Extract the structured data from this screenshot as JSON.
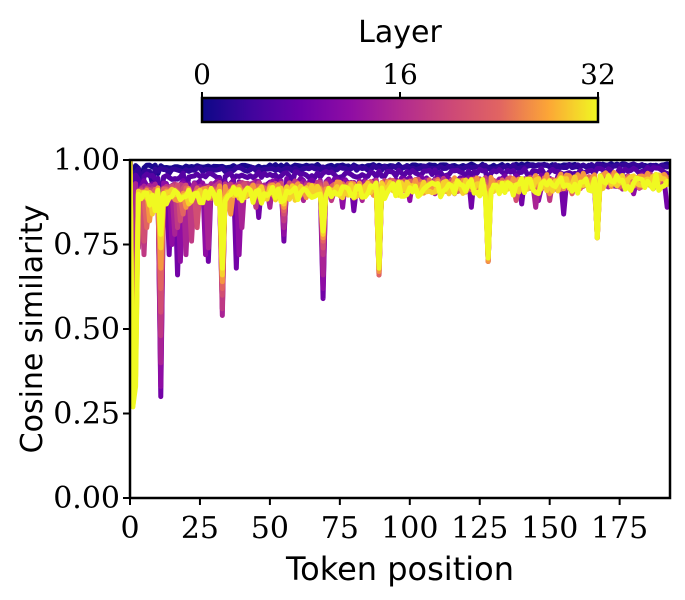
{
  "chart_data": {
    "type": "line",
    "title": "",
    "xlabel": "Token position",
    "ylabel": "Cosine similarity",
    "xlim": [
      0,
      193
    ],
    "ylim": [
      0.0,
      1.0
    ],
    "xticks": [
      0,
      25,
      50,
      75,
      100,
      125,
      150,
      175
    ],
    "yticks": [
      0.0,
      0.25,
      0.5,
      0.75,
      1.0
    ],
    "xtick_labels": [
      "0",
      "25",
      "50",
      "75",
      "100",
      "125",
      "150",
      "175"
    ],
    "ytick_labels": [
      "0.00",
      "0.25",
      "0.50",
      "0.75",
      "1.00"
    ],
    "grid": false,
    "colormap": "plasma",
    "colorbar": {
      "label": "Layer",
      "min": 0,
      "max": 32,
      "ticks": [
        0,
        16,
        32
      ],
      "tick_labels": [
        "0",
        "16",
        "32"
      ],
      "placement": "top"
    },
    "num_tokens": 193,
    "series": [
      {
        "layer": 1,
        "values_note": "",
        "base": 0.985,
        "noise": 0.01,
        "dips": [
          [
            1,
            0.92
          ],
          [
            4,
            0.95
          ],
          [
            10,
            0.96
          ],
          [
            25,
            0.98
          ]
        ],
        "end": 0.99
      },
      {
        "layer": 3,
        "base": 0.975,
        "noise": 0.012,
        "dips": [
          [
            1,
            0.88
          ],
          [
            4,
            0.92
          ],
          [
            8,
            0.93
          ],
          [
            14,
            0.96
          ],
          [
            30,
            0.97
          ]
        ],
        "end": 0.99
      },
      {
        "layer": 6,
        "base": 0.96,
        "noise": 0.02,
        "dips": [
          [
            1,
            0.8
          ],
          [
            4,
            0.87
          ],
          [
            11,
            0.84
          ],
          [
            20,
            0.9
          ],
          [
            33,
            0.88
          ],
          [
            58,
            0.93
          ],
          [
            128,
            0.93
          ]
        ],
        "end": 0.98
      },
      {
        "layer": 9,
        "base": 0.94,
        "noise": 0.03,
        "dips": [
          [
            1,
            0.68
          ],
          [
            3,
            0.82
          ],
          [
            11,
            0.3
          ],
          [
            14,
            0.72
          ],
          [
            17,
            0.66
          ],
          [
            22,
            0.78
          ],
          [
            28,
            0.7
          ],
          [
            33,
            0.6
          ],
          [
            38,
            0.68
          ],
          [
            46,
            0.83
          ],
          [
            55,
            0.76
          ],
          [
            69,
            0.59
          ],
          [
            80,
            0.85
          ],
          [
            89,
            0.72
          ],
          [
            122,
            0.86
          ],
          [
            128,
            0.79
          ],
          [
            140,
            0.87
          ],
          [
            155,
            0.84
          ],
          [
            167,
            0.8
          ],
          [
            192,
            0.86
          ]
        ],
        "end": 0.96
      },
      {
        "layer": 12,
        "base": 0.935,
        "noise": 0.03,
        "dips": [
          [
            1,
            0.6
          ],
          [
            3,
            0.78
          ],
          [
            11,
            0.33
          ],
          [
            15,
            0.75
          ],
          [
            18,
            0.7
          ],
          [
            21,
            0.78
          ],
          [
            27,
            0.72
          ],
          [
            33,
            0.56
          ],
          [
            39,
            0.72
          ],
          [
            55,
            0.78
          ],
          [
            69,
            0.62
          ],
          [
            76,
            0.86
          ],
          [
            89,
            0.68
          ],
          [
            100,
            0.88
          ],
          [
            128,
            0.72
          ],
          [
            146,
            0.88
          ],
          [
            167,
            0.78
          ],
          [
            180,
            0.9
          ]
        ],
        "end": 0.95
      },
      {
        "layer": 15,
        "base": 0.93,
        "noise": 0.035,
        "dips": [
          [
            1,
            0.55
          ],
          [
            3,
            0.74
          ],
          [
            11,
            0.4
          ],
          [
            16,
            0.78
          ],
          [
            20,
            0.72
          ],
          [
            28,
            0.74
          ],
          [
            33,
            0.54
          ],
          [
            40,
            0.8
          ],
          [
            50,
            0.86
          ],
          [
            55,
            0.8
          ],
          [
            62,
            0.88
          ],
          [
            69,
            0.66
          ],
          [
            83,
            0.88
          ],
          [
            89,
            0.66
          ],
          [
            109,
            0.9
          ],
          [
            128,
            0.7
          ],
          [
            145,
            0.86
          ],
          [
            167,
            0.77
          ],
          [
            190,
            0.92
          ]
        ],
        "end": 0.95
      },
      {
        "layer": 18,
        "base": 0.93,
        "noise": 0.035,
        "dips": [
          [
            1,
            0.45
          ],
          [
            2,
            0.6
          ],
          [
            5,
            0.72
          ],
          [
            11,
            0.48
          ],
          [
            17,
            0.8
          ],
          [
            22,
            0.76
          ],
          [
            33,
            0.56
          ],
          [
            45,
            0.86
          ],
          [
            55,
            0.82
          ],
          [
            69,
            0.72
          ],
          [
            72,
            0.88
          ],
          [
            89,
            0.67
          ],
          [
            116,
            0.9
          ],
          [
            128,
            0.7
          ],
          [
            150,
            0.88
          ],
          [
            167,
            0.78
          ]
        ],
        "end": 0.96
      },
      {
        "layer": 21,
        "base": 0.925,
        "noise": 0.04,
        "dips": [
          [
            1,
            0.38
          ],
          [
            2,
            0.5
          ],
          [
            5,
            0.76
          ],
          [
            11,
            0.55
          ],
          [
            18,
            0.82
          ],
          [
            24,
            0.8
          ],
          [
            33,
            0.6
          ],
          [
            44,
            0.88
          ],
          [
            55,
            0.84
          ],
          [
            69,
            0.74
          ],
          [
            89,
            0.66
          ],
          [
            104,
            0.92
          ],
          [
            128,
            0.7
          ],
          [
            138,
            0.88
          ],
          [
            167,
            0.77
          ],
          [
            185,
            0.93
          ]
        ],
        "end": 0.96
      },
      {
        "layer": 24,
        "base": 0.92,
        "noise": 0.04,
        "dips": [
          [
            1,
            0.32
          ],
          [
            2,
            0.44
          ],
          [
            6,
            0.8
          ],
          [
            11,
            0.62
          ],
          [
            19,
            0.84
          ],
          [
            33,
            0.62
          ],
          [
            42,
            0.9
          ],
          [
            55,
            0.85
          ],
          [
            69,
            0.76
          ],
          [
            89,
            0.66
          ],
          [
            128,
            0.7
          ],
          [
            158,
            0.9
          ],
          [
            167,
            0.77
          ]
        ],
        "end": 0.96
      },
      {
        "layer": 27,
        "base": 0.915,
        "noise": 0.045,
        "dips": [
          [
            1,
            0.29
          ],
          [
            2,
            0.4
          ],
          [
            7,
            0.82
          ],
          [
            11,
            0.68
          ],
          [
            20,
            0.86
          ],
          [
            33,
            0.64
          ],
          [
            36,
            0.84
          ],
          [
            55,
            0.86
          ],
          [
            69,
            0.77
          ],
          [
            89,
            0.67
          ],
          [
            98,
            0.92
          ],
          [
            128,
            0.7
          ],
          [
            150,
            0.9
          ],
          [
            167,
            0.77
          ]
        ],
        "end": 0.97
      },
      {
        "layer": 30,
        "base": 0.91,
        "noise": 0.045,
        "dips": [
          [
            1,
            0.27
          ],
          [
            2,
            0.36
          ],
          [
            8,
            0.84
          ],
          [
            11,
            0.74
          ],
          [
            21,
            0.87
          ],
          [
            33,
            0.66
          ],
          [
            55,
            0.87
          ],
          [
            69,
            0.78
          ],
          [
            89,
            0.68
          ],
          [
            128,
            0.71
          ],
          [
            167,
            0.77
          ],
          [
            188,
            0.93
          ]
        ],
        "end": 0.96
      },
      {
        "layer": 32,
        "base": 0.91,
        "noise": 0.05,
        "dips": [
          [
            1,
            0.27
          ],
          [
            2,
            0.33
          ],
          [
            9,
            0.85
          ],
          [
            11,
            0.78
          ],
          [
            22,
            0.88
          ],
          [
            33,
            0.68
          ],
          [
            55,
            0.88
          ],
          [
            69,
            0.79
          ],
          [
            89,
            0.68
          ],
          [
            128,
            0.71
          ],
          [
            167,
            0.77
          ],
          [
            190,
            0.92
          ]
        ],
        "end": 0.96
      }
    ]
  }
}
